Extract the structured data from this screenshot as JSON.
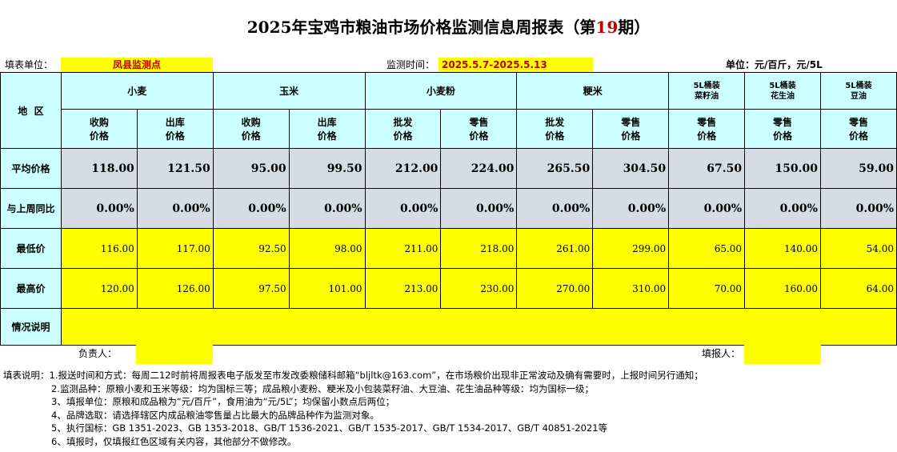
{
  "title_prefix": "2025年宝鸡市粮油市场价格监测信息周报表（第",
  "period": "19",
  "title_suffix": "期）",
  "fill_unit_label": "填表单位：",
  "fill_unit_value": "凤县监测点",
  "monitor_time_label": "监测时间：",
  "monitor_time_value": "2025.5.7-2025.5.13",
  "unit_label": "单位：元/百斤，元/5L",
  "region_header": "地  区",
  "groups": [
    "小麦",
    "玉米",
    "小麦粉",
    "粳米",
    "5L桶装\n菜籽油",
    "5L桶装\n花生油",
    "5L桶装\n豆油"
  ],
  "sub_headers": [
    "收购\n价格",
    "出库\n价格",
    "收购\n价格",
    "出库\n价格",
    "批发\n价格",
    "零售\n价格",
    "批发\n价格",
    "零售\n价格",
    "零售\n价格",
    "零售\n价格",
    "零售\n价格"
  ],
  "rows": {
    "avg_label": "平均价格",
    "avg": [
      "118.00",
      "121.50",
      "95.00",
      "99.50",
      "212.00",
      "224.00",
      "265.50",
      "304.50",
      "67.50",
      "150.00",
      "59.00"
    ],
    "yoy_label": "与上周同比",
    "yoy": [
      "0.00%",
      "0.00%",
      "0.00%",
      "0.00%",
      "0.00%",
      "0.00%",
      "0.00%",
      "0.00%",
      "0.00%",
      "0.00%",
      "0.00%"
    ],
    "min_label": "最低价",
    "min": [
      "116.00",
      "117.00",
      "92.50",
      "98.00",
      "211.00",
      "218.00",
      "261.00",
      "299.00",
      "65.00",
      "140.00",
      "54.00"
    ],
    "max_label": "最高价",
    "max": [
      "120.00",
      "126.00",
      "97.50",
      "101.00",
      "213.00",
      "230.00",
      "270.00",
      "310.00",
      "70.00",
      "160.00",
      "64.00"
    ],
    "notes_label": "情况说明"
  },
  "responsible_label": "负责人：",
  "filler_label": "填报人：",
  "notes": [
    "填表说明：1.报送时间和方式：每周二12时前将周报表电子版发至市发改委粮储科邮箱“bljltk@163.com”，在市场粮价出现非正常波动及确有需要时，上报时间另行通知；",
    "2.监测品种：原粮小麦和玉米等级：均为国标三等；成品粮小麦粉、粳米及小包装菜籽油、大豆油、花生油品种等级：均为国标一级；",
    "3、填报单位：原粮和成品粮为“元/百斤”，食用油为“元/5L”；均保留小数点后两位；",
    "4、品牌选取：请选择辖区内成品粮油零售量占比最大的品牌品种作为监测对象。",
    "5、执行国标：GB 1351-2023、GB 1353-2018、GB/T 1536-2021、GB/T 1535-2017、GB/T 1534-2017、GB/T 40851-2021等",
    "6、填报时，仅填报红色区域有关内容，其他部分不做修改。"
  ],
  "colors": {
    "header_bg": "#ccffff",
    "avg_bg": "#d6dce4",
    "input_bg": "#ffff00",
    "accent_red": "#c00000"
  }
}
